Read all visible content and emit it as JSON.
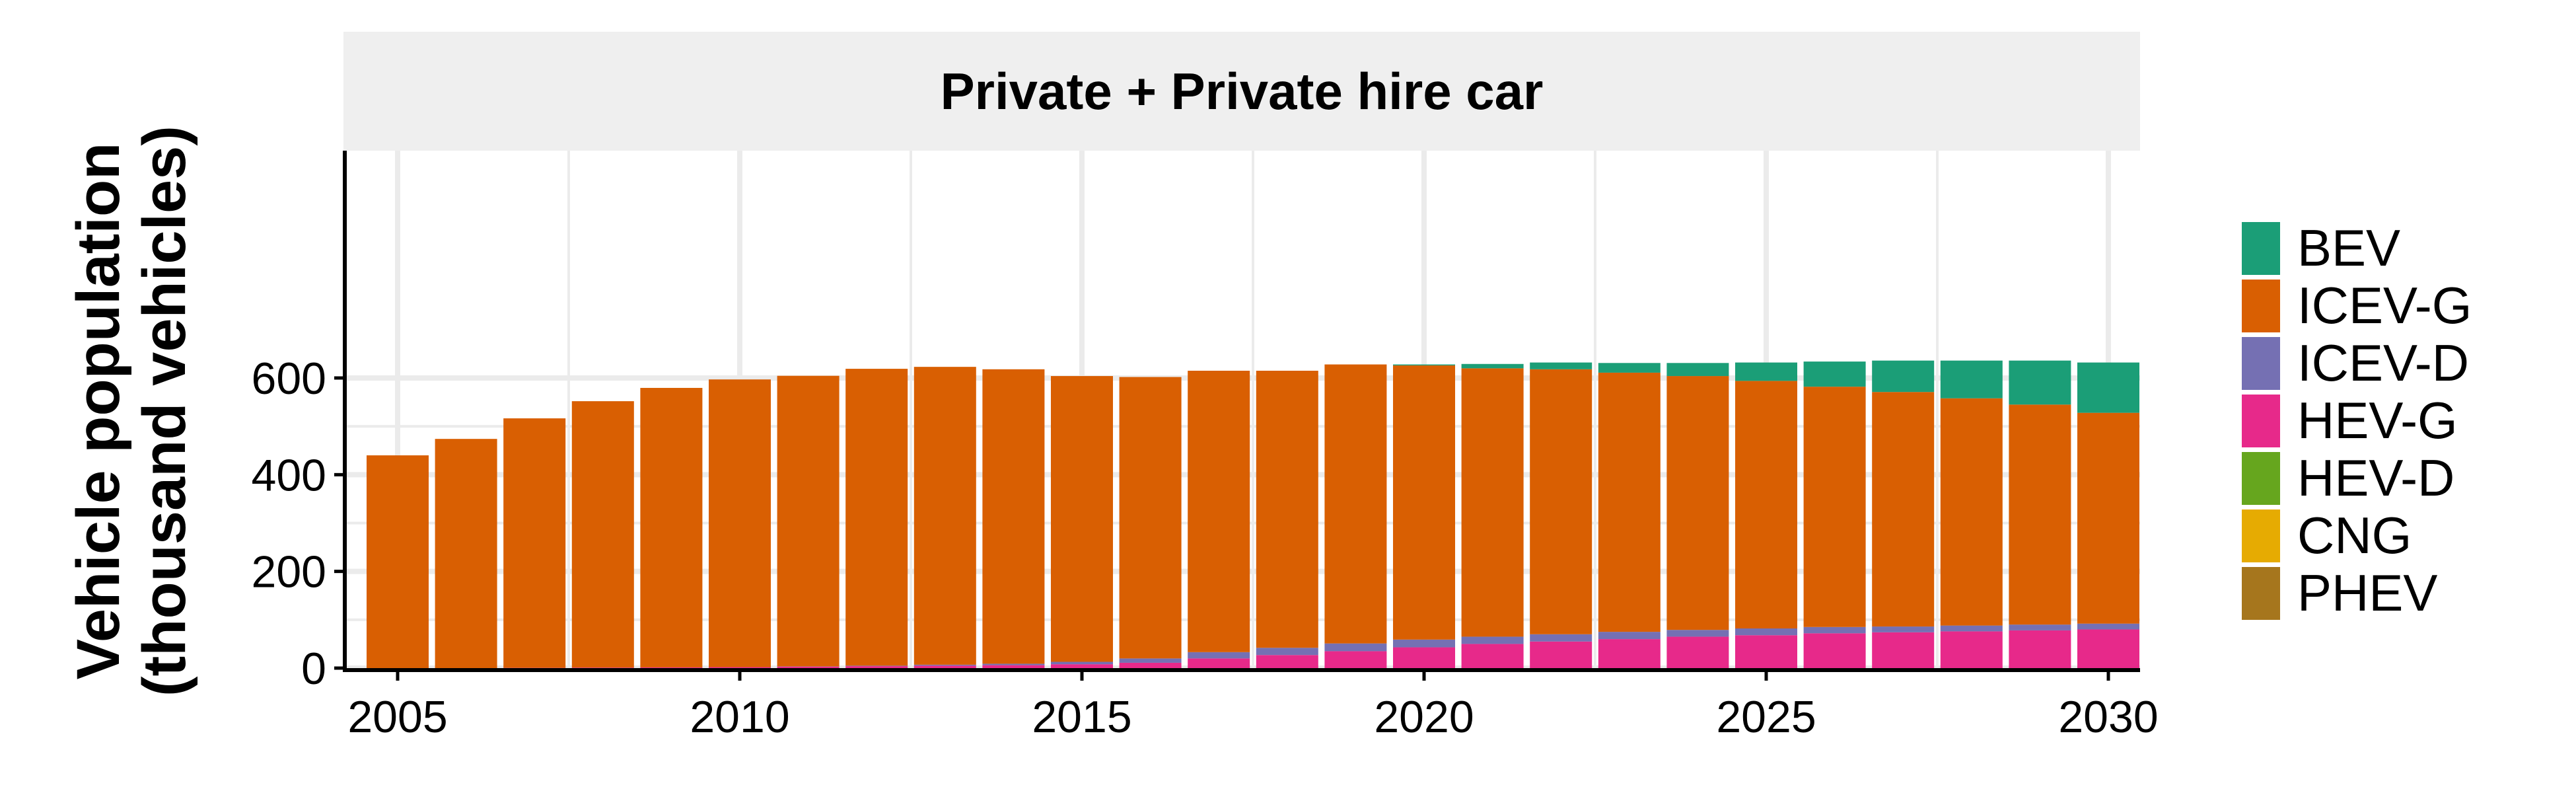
{
  "chart_data": {
    "type": "bar",
    "stacked": true,
    "facet_title": "Private + Private hire car",
    "ylabel_line1": "Vehicle population",
    "ylabel_line2": "(thousand vehicles)",
    "xlabel": "",
    "ylim": [
      0,
      640
    ],
    "y_ticks": [
      0,
      200,
      400,
      600
    ],
    "x_ticks": [
      2005,
      2010,
      2015,
      2020,
      2025,
      2030
    ],
    "grid": true,
    "legend_position": "right",
    "categories": [
      2005,
      2006,
      2007,
      2008,
      2009,
      2010,
      2011,
      2012,
      2013,
      2014,
      2015,
      2016,
      2017,
      2018,
      2019,
      2020,
      2021,
      2022,
      2023,
      2024,
      2025,
      2026,
      2027,
      2028,
      2029,
      2030
    ],
    "series": [
      {
        "name": "PHEV",
        "color": "#A6761D",
        "values": [
          0,
          0,
          0,
          0,
          0,
          0,
          0,
          0,
          0,
          0,
          0,
          0,
          0,
          0,
          0,
          0,
          0,
          0,
          0,
          0,
          0,
          0,
          0,
          0,
          0,
          0
        ]
      },
      {
        "name": "CNG",
        "color": "#E6AB02",
        "values": [
          0,
          0,
          0,
          0,
          0,
          0,
          0,
          0,
          0,
          0,
          0,
          0,
          0,
          0,
          0,
          0,
          0,
          0,
          0,
          0,
          0,
          0,
          0,
          0,
          0,
          0
        ]
      },
      {
        "name": "HEV-D",
        "color": "#66A61E",
        "values": [
          0,
          0,
          0,
          0,
          0,
          0,
          0,
          0,
          0,
          0,
          0,
          0,
          0,
          0,
          0,
          0,
          0,
          0,
          0,
          0,
          0,
          0,
          0,
          0,
          0,
          0
        ]
      },
      {
        "name": "HEV-G",
        "color": "#E7298A",
        "values": [
          0,
          0,
          0.5,
          1,
          1.5,
          2,
          3,
          4,
          5,
          6,
          8,
          11,
          20,
          27,
          35,
          43,
          50,
          55,
          60,
          65,
          68,
          72,
          74,
          76,
          78,
          80
        ]
      },
      {
        "name": "ICEV-D",
        "color": "#7570B3",
        "values": [
          0,
          0,
          0,
          0,
          0,
          0,
          0.5,
          1,
          2,
          3,
          5,
          9,
          13,
          15,
          16,
          16,
          15,
          15,
          15,
          14,
          14,
          13,
          12,
          12,
          12,
          12
        ]
      },
      {
        "name": "ICEV-G",
        "color": "#D95F02",
        "values": [
          440,
          474,
          516,
          551,
          578,
          595,
          601,
          614,
          616,
          609,
          591,
          582,
          582,
          573,
          577,
          567,
          555,
          548,
          536,
          525,
          512,
          497,
          485,
          470,
          455,
          436
        ]
      },
      {
        "name": "BEV",
        "color": "#1B9E77",
        "values": [
          0,
          0,
          0,
          0,
          0,
          0,
          0,
          0,
          0,
          0,
          0,
          0,
          0,
          0,
          0,
          2,
          9,
          14,
          20,
          27,
          38,
          52,
          65,
          78,
          91,
          104
        ]
      }
    ],
    "legend_order": [
      "BEV",
      "ICEV-G",
      "ICEV-D",
      "HEV-G",
      "HEV-D",
      "CNG",
      "PHEV"
    ]
  },
  "colors": {
    "strip_bg": "#EFEFEF",
    "grid": "#EBEBEB",
    "axis": "#000000"
  }
}
